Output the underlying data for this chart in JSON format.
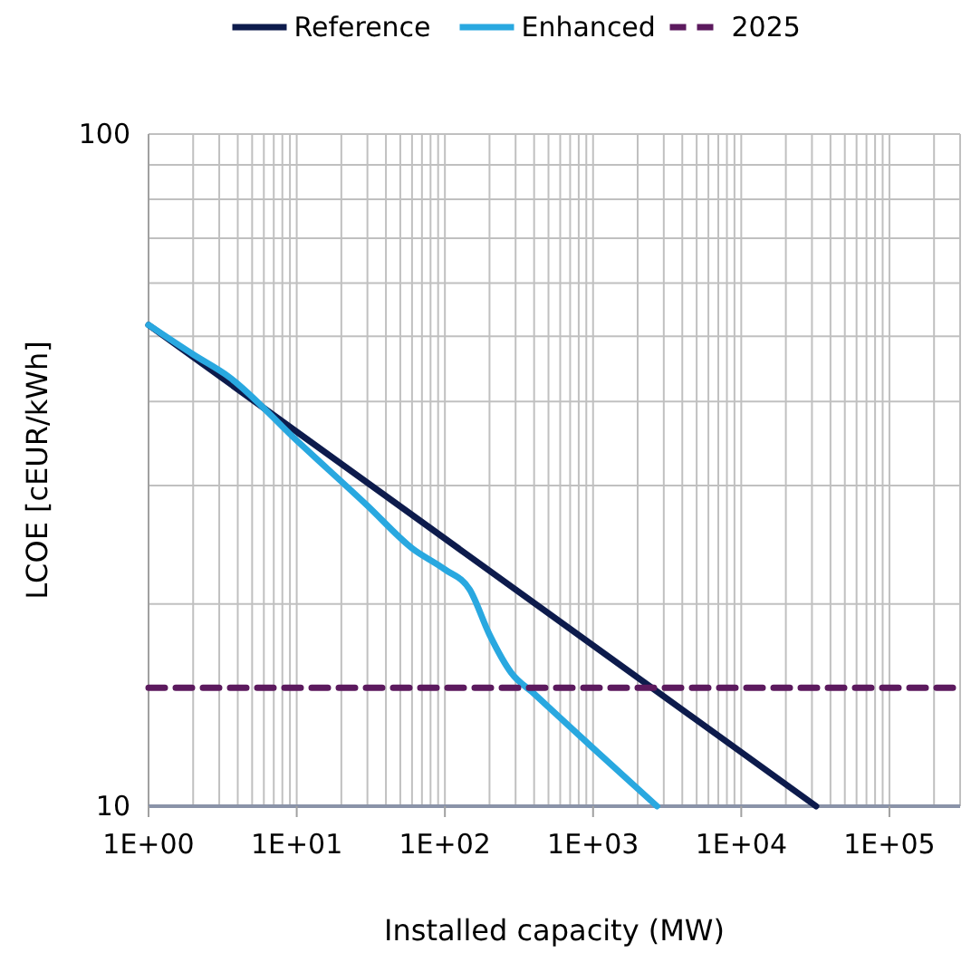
{
  "chart_data": {
    "type": "line",
    "xlabel": "Installed capacity (MW)",
    "ylabel": "LCOE [cEUR/kWh]",
    "log": "xy",
    "grid": true,
    "legend": "top",
    "line_style": "solid",
    "xlim": [
      1,
      300000
    ],
    "xticks": [
      {
        "value": 1,
        "label": "1E+00"
      },
      {
        "value": 10,
        "label": "1E+01"
      },
      {
        "value": 100,
        "label": "1E+02"
      },
      {
        "value": 1000,
        "label": "1E+03"
      },
      {
        "value": 10000,
        "label": "1E+04"
      },
      {
        "value": 100000,
        "label": "1E+05"
      }
    ],
    "ylim": [
      10,
      100
    ],
    "yticks": [
      10,
      100
    ],
    "series": [
      {
        "name": "Reference",
        "color": "#0d1b4c",
        "x": [
          1,
          32000
        ],
        "values": [
          52,
          10
        ]
      },
      {
        "name": "Enhanced",
        "color": "#29a8e0",
        "x": [
          1,
          2,
          3.5,
          10,
          30,
          60,
          100,
          147,
          200,
          280,
          400,
          1000,
          2700
        ],
        "values": [
          52,
          47,
          43.5,
          35,
          28,
          24.2,
          22.5,
          21,
          18,
          15.8,
          14.7,
          12.2,
          10
        ]
      },
      {
        "name": "2025",
        "color": "#5c1a5e",
        "line_style": "dashed",
        "x": [
          1,
          300000
        ],
        "values": [
          15,
          15
        ]
      }
    ]
  }
}
